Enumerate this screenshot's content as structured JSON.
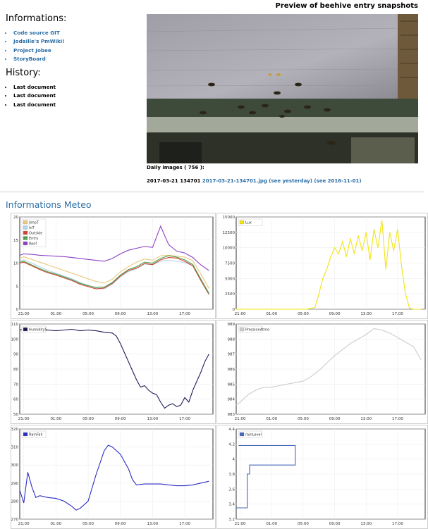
{
  "header": {
    "title": "Preview of beehive entry snapshots"
  },
  "informations": {
    "heading": "Informations:",
    "links": [
      "Code source GIT",
      "Jodaille's PmWiki!",
      "Project Jobee",
      "StoryBoard"
    ]
  },
  "history": {
    "heading": "History:",
    "items": [
      "Last document",
      "Last document",
      "Last document"
    ]
  },
  "snapshot": {
    "daily_label": "Daily images ( 756 ):",
    "timestamp": "2017-03-21 134701",
    "file_link": "2017-03-21-134701.jpg",
    "yesterday_link": "(see yesterday)",
    "date_link": "(see 2016-11-01)"
  },
  "meteo": {
    "heading": "Informations Meteo"
  },
  "chart_data": [
    {
      "type": "line",
      "x_ticks": [
        "21:00",
        "01:00",
        "05:00",
        "09:00",
        "13:00",
        "17:00"
      ],
      "ylim": [
        0,
        20
      ],
      "y_ticks": [
        0,
        5,
        10,
        15,
        20
      ],
      "legend": "top-left",
      "series": [
        {
          "name": "JimpT",
          "color": "#e8c879",
          "x": [
            20.5,
            21,
            22,
            23,
            0,
            1,
            2,
            3,
            4,
            5,
            6,
            7,
            8,
            9,
            10,
            11,
            12,
            13,
            14,
            15,
            16,
            17,
            18,
            19,
            20
          ],
          "y": [
            11,
            11.4,
            10.8,
            10.2,
            9.6,
            9.0,
            8.4,
            7.8,
            7.2,
            6.6,
            6.0,
            5.7,
            6.5,
            8.1,
            9.2,
            10.2,
            10.9,
            10.6,
            11.6,
            11.7,
            11.5,
            11.3,
            10.5,
            7.6,
            4.5
          ]
        },
        {
          "name": "InT",
          "color": "#b5d5ea",
          "x": [
            20.5,
            21,
            22,
            23,
            0,
            1,
            2,
            3,
            4,
            5,
            6,
            7,
            8,
            9,
            10,
            11,
            12,
            13,
            14,
            15,
            16,
            17,
            18,
            19,
            20
          ],
          "y": [
            10.5,
            10.7,
            10,
            9.2,
            8.4,
            7.8,
            7.2,
            6.6,
            5.8,
            5.2,
            4.6,
            4.4,
            5.4,
            7,
            8.1,
            8.8,
            9.8,
            9.6,
            10.4,
            10.6,
            10.4,
            10.1,
            9.4,
            6.5,
            3.6
          ]
        },
        {
          "name": "Outside",
          "color": "#d23f31",
          "x": [
            20.5,
            21,
            22,
            23,
            0,
            1,
            2,
            3,
            4,
            5,
            6,
            7,
            8,
            9,
            10,
            11,
            12,
            13,
            14,
            15,
            16,
            17,
            18,
            19,
            20
          ],
          "y": [
            10,
            10.2,
            9.4,
            8.6,
            7.9,
            7.4,
            6.8,
            6.2,
            5.4,
            4.9,
            4.4,
            4.6,
            5.6,
            7.2,
            8.4,
            8.9,
            9.9,
            9.7,
            10.7,
            11.2,
            11.1,
            10.4,
            9.4,
            6.2,
            3.2
          ]
        },
        {
          "name": "Entry",
          "color": "#4ea14e",
          "x": [
            20.5,
            21,
            22,
            23,
            0,
            1,
            2,
            3,
            4,
            5,
            6,
            7,
            8,
            9,
            10,
            11,
            12,
            13,
            14,
            15,
            16,
            17,
            18,
            19,
            20
          ],
          "y": [
            10.2,
            10.4,
            9.6,
            8.8,
            8.1,
            7.6,
            7.0,
            6.4,
            5.6,
            5.1,
            4.7,
            4.8,
            5.8,
            7.4,
            8.6,
            9.2,
            10.2,
            10.0,
            11.0,
            11.6,
            11.3,
            10.7,
            9.7,
            6.5,
            3.4
          ]
        },
        {
          "name": "Roof",
          "color": "#8e3fc4",
          "x": [
            20.5,
            21,
            22,
            23,
            0,
            1,
            2,
            3,
            4,
            5,
            6,
            7,
            8,
            9,
            10,
            11,
            12,
            13,
            14,
            15,
            16,
            17,
            18,
            19,
            20
          ],
          "y": [
            11.7,
            12.0,
            11.9,
            11.7,
            11.6,
            11.5,
            11.4,
            11.2,
            11.0,
            10.8,
            10.6,
            10.4,
            11.0,
            12.0,
            12.8,
            13.2,
            13.6,
            13.4,
            18.0,
            14.0,
            12.6,
            12.2,
            11.2,
            9.6,
            8.4
          ]
        }
      ]
    },
    {
      "type": "line",
      "x_ticks": [
        "21:00",
        "01:00",
        "05:00",
        "09:00",
        "13:00",
        "17:00"
      ],
      "ylim": [
        0,
        15000
      ],
      "y_ticks": [
        0,
        2500,
        5000,
        7500,
        10000,
        12500,
        15000
      ],
      "legend": "top-left",
      "series": [
        {
          "name": "Lux",
          "color": "#f2e40f",
          "x": [
            20.5,
            22,
            0,
            2,
            4,
            5.5,
            6.5,
            7,
            7.5,
            8,
            8.5,
            9,
            9.5,
            10,
            10.5,
            11,
            11.5,
            12,
            12.5,
            13,
            13.5,
            14,
            14.5,
            15,
            15.5,
            16,
            16.5,
            17,
            17.5,
            18,
            18.5,
            19,
            20
          ],
          "y": [
            0,
            0,
            0,
            0,
            0,
            0,
            300,
            2500,
            5000,
            6500,
            8500,
            10000,
            9000,
            11000,
            8500,
            11500,
            9000,
            12000,
            9500,
            12500,
            8000,
            13000,
            10000,
            14500,
            6500,
            12500,
            9500,
            13000,
            7000,
            2500,
            200,
            0,
            0
          ]
        }
      ]
    },
    {
      "type": "line",
      "x_ticks": [
        "21:00",
        "01:00",
        "05:00",
        "09:00",
        "13:00",
        "17:00"
      ],
      "ylim": [
        50,
        110
      ],
      "y_ticks": [
        50,
        60,
        70,
        80,
        90,
        100,
        110
      ],
      "legend": "top-left",
      "series": [
        {
          "name": "HumidityS",
          "color": "#1c1a57",
          "x": [
            20.5,
            21,
            22,
            23,
            0,
            1,
            2,
            3,
            4,
            5,
            6,
            7,
            8,
            8.5,
            9,
            9.5,
            10,
            10.5,
            11,
            11.5,
            12,
            12.5,
            13,
            13.5,
            14,
            14.5,
            15,
            15.5,
            16,
            16.5,
            17,
            17.5,
            18,
            18.5,
            19,
            19.5,
            20
          ],
          "y": [
            106,
            106.5,
            106,
            105.5,
            106,
            105.5,
            106,
            106.5,
            105.5,
            106,
            105.5,
            104.5,
            104,
            102,
            97,
            91,
            85,
            79,
            73,
            68,
            69,
            66,
            64,
            63,
            58,
            54,
            56,
            57,
            55,
            56,
            61,
            58,
            66,
            72,
            78,
            85,
            90
          ]
        }
      ]
    },
    {
      "type": "line",
      "x_ticks": [
        "21:00",
        "01:00",
        "05:00",
        "09:00",
        "13:00",
        "17:00"
      ],
      "ylim": [
        983,
        989
      ],
      "y_ticks": [
        983,
        984,
        985,
        986,
        987,
        988,
        989
      ],
      "legend": "top-left",
      "series": [
        {
          "name": "PressionAtmo",
          "color": "#cccccc",
          "x": [
            20.5,
            21,
            22,
            23,
            0,
            1,
            2,
            3,
            4,
            5,
            6,
            7,
            8,
            9,
            10,
            11,
            12,
            13,
            14,
            15,
            16,
            17,
            18,
            19,
            20
          ],
          "y": [
            983.6,
            983.8,
            984.3,
            984.6,
            984.8,
            984.8,
            984.9,
            985,
            985.1,
            985.2,
            985.5,
            985.9,
            986.4,
            986.9,
            987.3,
            987.7,
            988,
            988.3,
            988.7,
            988.6,
            988.4,
            988.1,
            987.8,
            987.5,
            986.6
          ]
        }
      ]
    },
    {
      "type": "line",
      "x_ticks": [
        "21:00",
        "01:00",
        "05:00",
        "09:00",
        "13:00",
        "17:00"
      ],
      "ylim": [
        270,
        320
      ],
      "y_ticks": [
        270,
        280,
        290,
        300,
        310,
        320
      ],
      "legend": "top-left",
      "series": [
        {
          "name": "RainFall",
          "color": "#2c2cc4",
          "x": [
            20.5,
            21,
            21.5,
            22,
            22.5,
            23,
            0,
            1,
            2,
            3,
            3.5,
            4,
            5,
            6,
            7,
            7.5,
            8,
            9,
            10,
            10.5,
            11,
            12,
            13,
            14,
            15,
            16,
            17,
            18,
            19,
            20
          ],
          "y": [
            286,
            279,
            296,
            288,
            282,
            283,
            282,
            281.5,
            280,
            277,
            275,
            276,
            280,
            295,
            308,
            311,
            310,
            306,
            298,
            292,
            289,
            289.5,
            289.5,
            289.5,
            289,
            288.5,
            288.5,
            289,
            290,
            291
          ]
        }
      ]
    },
    {
      "type": "line",
      "x_ticks": [
        "21:00",
        "01:00",
        "05:00",
        "09:00",
        "13:00",
        "17:00"
      ],
      "ylim": [
        3.2,
        4.4
      ],
      "y_ticks": [
        3.2,
        3.4,
        3.6,
        3.8,
        4.0,
        4.2,
        4.4
      ],
      "legend": "top-left",
      "series": [
        {
          "name": "rainLevel",
          "color": "#4466bb",
          "x": [
            20.5,
            21.9,
            21.9,
            22.2,
            22.2,
            4.0,
            4.0,
            20.8
          ],
          "y": [
            3.35,
            3.35,
            3.8,
            3.8,
            3.92,
            3.92,
            4.18,
            4.18
          ]
        }
      ]
    }
  ]
}
